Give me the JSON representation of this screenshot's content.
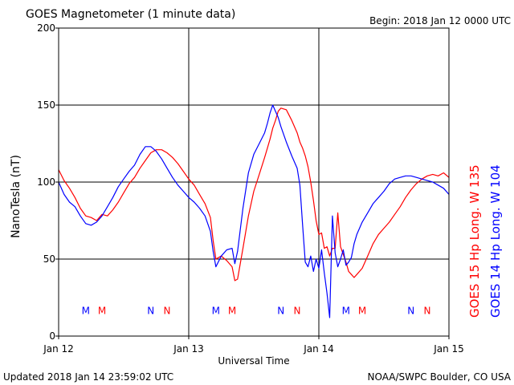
{
  "header": {
    "title": "GOES Magnetometer (1 minute data)",
    "begin": "Begin:  2018 Jan 12 0000 UTC"
  },
  "footer": {
    "updated": "Updated 2018 Jan 14 23:59:02 UTC",
    "credit": "NOAA/SWPC Boulder, CO USA"
  },
  "colors": {
    "goes15": "#ff0000",
    "goes14": "#0000ff",
    "grid": "#000000"
  },
  "chart_data": {
    "type": "line",
    "title": "GOES Magnetometer (1 minute data)",
    "xlabel": "Universal Time",
    "ylabel": "NanoTesla (nT)",
    "xlim": [
      0,
      72
    ],
    "ylim": [
      0,
      200
    ],
    "x_unit": "hours since 2018 Jan 12 0000 UTC",
    "x_ticks": [
      {
        "value": 0,
        "label": "Jan 12"
      },
      {
        "value": 24,
        "label": "Jan 13"
      },
      {
        "value": 48,
        "label": "Jan 14"
      },
      {
        "value": 72,
        "label": "Jan 15"
      }
    ],
    "y_ticks": [
      0,
      50,
      100,
      150,
      200
    ],
    "grid": true,
    "series": [
      {
        "name": "GOES 15 Hp  Long. W 135",
        "color": "#ff0000",
        "x": [
          0,
          1,
          2,
          3,
          4,
          5,
          6,
          7,
          8,
          9,
          10,
          11,
          12,
          13,
          14,
          15,
          16,
          17,
          18,
          19,
          20,
          21,
          22,
          23,
          24,
          25,
          26,
          27,
          28,
          28.5,
          29,
          30,
          31,
          32,
          32.5,
          33,
          34,
          35,
          36,
          37,
          38,
          38.5,
          39,
          39.5,
          40,
          40.5,
          41,
          42,
          43,
          44,
          44.5,
          45,
          45.5,
          46,
          46.5,
          47,
          47.5,
          48,
          48.5,
          49,
          49.5,
          50,
          50.5,
          51,
          51.5,
          52,
          52.5,
          53,
          53.5,
          54,
          54.5,
          55,
          56,
          57,
          58,
          59,
          60,
          61,
          62,
          63,
          64,
          65,
          66,
          67,
          68,
          69,
          70,
          71,
          72
        ],
        "y": [
          108,
          101,
          96,
          90,
          83,
          78,
          77,
          75,
          79,
          78,
          82,
          87,
          93,
          99,
          103,
          109,
          114,
          119,
          121,
          121,
          119,
          116,
          112,
          107,
          102,
          98,
          92,
          86,
          77,
          62,
          50,
          52,
          49,
          45,
          36,
          37,
          57,
          78,
          94,
          105,
          116,
          122,
          128,
          135,
          140,
          146,
          148,
          147,
          140,
          132,
          126,
          122,
          117,
          110,
          100,
          88,
          75,
          66,
          67,
          57,
          58,
          52,
          57,
          57,
          80,
          58,
          53,
          48,
          42,
          40,
          38,
          40,
          44,
          52,
          60,
          66,
          70,
          74,
          79,
          84,
          90,
          95,
          99,
          102,
          104,
          105,
          104,
          106,
          103
        ]
      },
      {
        "name": "GOES 14 Hp  Long. W 104",
        "color": "#0000ff",
        "x": [
          0,
          1,
          2,
          3,
          4,
          5,
          6,
          7,
          8,
          9,
          10,
          11,
          12,
          13,
          14,
          15,
          16,
          17,
          18,
          19,
          20,
          21,
          22,
          23,
          24,
          25,
          26,
          27,
          28,
          28.5,
          29,
          30,
          31,
          32,
          32.5,
          33,
          34,
          35,
          36,
          37,
          38,
          38.5,
          39,
          39.5,
          40,
          40.5,
          41,
          42,
          43,
          44,
          44.5,
          45,
          45.5,
          46,
          46.5,
          47,
          47.5,
          48,
          48.5,
          49,
          49.5,
          50,
          50.5,
          51,
          51.5,
          52,
          52.5,
          53,
          53.5,
          54,
          54.5,
          55,
          56,
          57,
          58,
          59,
          60,
          61,
          62,
          63,
          64,
          65,
          66,
          67,
          68,
          69,
          70,
          71,
          72
        ],
        "y": [
          100,
          92,
          87,
          84,
          78,
          73,
          72,
          74,
          78,
          84,
          90,
          97,
          102,
          107,
          111,
          118,
          123,
          123,
          120,
          115,
          109,
          103,
          98,
          94,
          90,
          87,
          83,
          78,
          68,
          55,
          45,
          52,
          56,
          57,
          47,
          55,
          83,
          106,
          118,
          125,
          132,
          138,
          145,
          150,
          146,
          142,
          136,
          126,
          117,
          109,
          98,
          72,
          48,
          45,
          52,
          42,
          50,
          44,
          56,
          41,
          28,
          12,
          78,
          54,
          45,
          50,
          56,
          46,
          48,
          51,
          60,
          66,
          74,
          80,
          86,
          90,
          94,
          99,
          102,
          103,
          104,
          104,
          103,
          102,
          101,
          100,
          98,
          96,
          92
        ]
      }
    ],
    "annotations": [
      {
        "text": "M",
        "x": 5,
        "y": 17,
        "color": "#0000ff"
      },
      {
        "text": "M",
        "x": 8,
        "y": 17,
        "color": "#ff0000"
      },
      {
        "text": "N",
        "x": 17,
        "y": 17,
        "color": "#0000ff"
      },
      {
        "text": "N",
        "x": 20,
        "y": 17,
        "color": "#ff0000"
      },
      {
        "text": "M",
        "x": 29,
        "y": 17,
        "color": "#0000ff"
      },
      {
        "text": "M",
        "x": 32,
        "y": 17,
        "color": "#ff0000"
      },
      {
        "text": "N",
        "x": 41,
        "y": 17,
        "color": "#0000ff"
      },
      {
        "text": "N",
        "x": 44,
        "y": 17,
        "color": "#ff0000"
      },
      {
        "text": "M",
        "x": 53,
        "y": 17,
        "color": "#0000ff"
      },
      {
        "text": "M",
        "x": 56,
        "y": 17,
        "color": "#ff0000"
      },
      {
        "text": "N",
        "x": 65,
        "y": 17,
        "color": "#0000ff"
      },
      {
        "text": "N",
        "x": 68,
        "y": 17,
        "color": "#ff0000"
      }
    ],
    "legend_placement": "right (vertical text)"
  }
}
